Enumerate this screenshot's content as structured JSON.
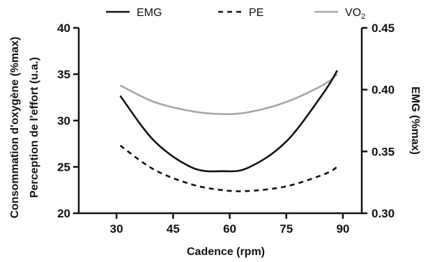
{
  "chart_data": {
    "type": "line",
    "title": "",
    "xlabel": "Cadence (rpm)",
    "ylabel_left": [
      "Consommation d'oxygène (%max)",
      "Perception de l'effort (u.a.)"
    ],
    "ylabel_right": "EMG (%max)",
    "xlim": [
      20,
      95
    ],
    "xticks": [
      30,
      45,
      60,
      75,
      90
    ],
    "ylim_left": [
      20,
      40
    ],
    "yticks_left": [
      20,
      25,
      30,
      35,
      40
    ],
    "ylim_right": [
      0.3,
      0.45
    ],
    "yticks_right": [
      "0.30",
      "0.35",
      "0.40",
      "0.45"
    ],
    "grid": false,
    "legend_position": "top",
    "legend": [
      {
        "label": "EMG",
        "sub": "",
        "style": "solid",
        "color": "#111111"
      },
      {
        "label": "PE",
        "sub": "",
        "style": "dashed",
        "color": "#111111"
      },
      {
        "label": "VO",
        "sub": "2",
        "style": "solid",
        "color": "#a6a6a6"
      }
    ],
    "series": [
      {
        "name": "EMG",
        "axis": "right",
        "color": "#111111",
        "style": "solid",
        "x": [
          31,
          40,
          50,
          58,
          65,
          75,
          85,
          88.5
        ],
        "y": [
          0.395,
          0.3585,
          0.337,
          0.334,
          0.337,
          0.358,
          0.398,
          0.4155
        ]
      },
      {
        "name": "PE",
        "axis": "left",
        "color": "#111111",
        "style": "dashed",
        "x": [
          31,
          40,
          50,
          58,
          65,
          75,
          85,
          88.5
        ],
        "y": [
          27.3,
          24.7,
          23.1,
          22.5,
          22.4,
          22.9,
          24.2,
          25.0
        ]
      },
      {
        "name": "VO2",
        "axis": "left",
        "color": "#a6a6a6",
        "style": "solid",
        "x": [
          31,
          40,
          50,
          58,
          65,
          75,
          85,
          88.5
        ],
        "y": [
          33.8,
          32.0,
          31.0,
          30.7,
          30.9,
          32.0,
          33.9,
          35.0
        ]
      }
    ]
  }
}
